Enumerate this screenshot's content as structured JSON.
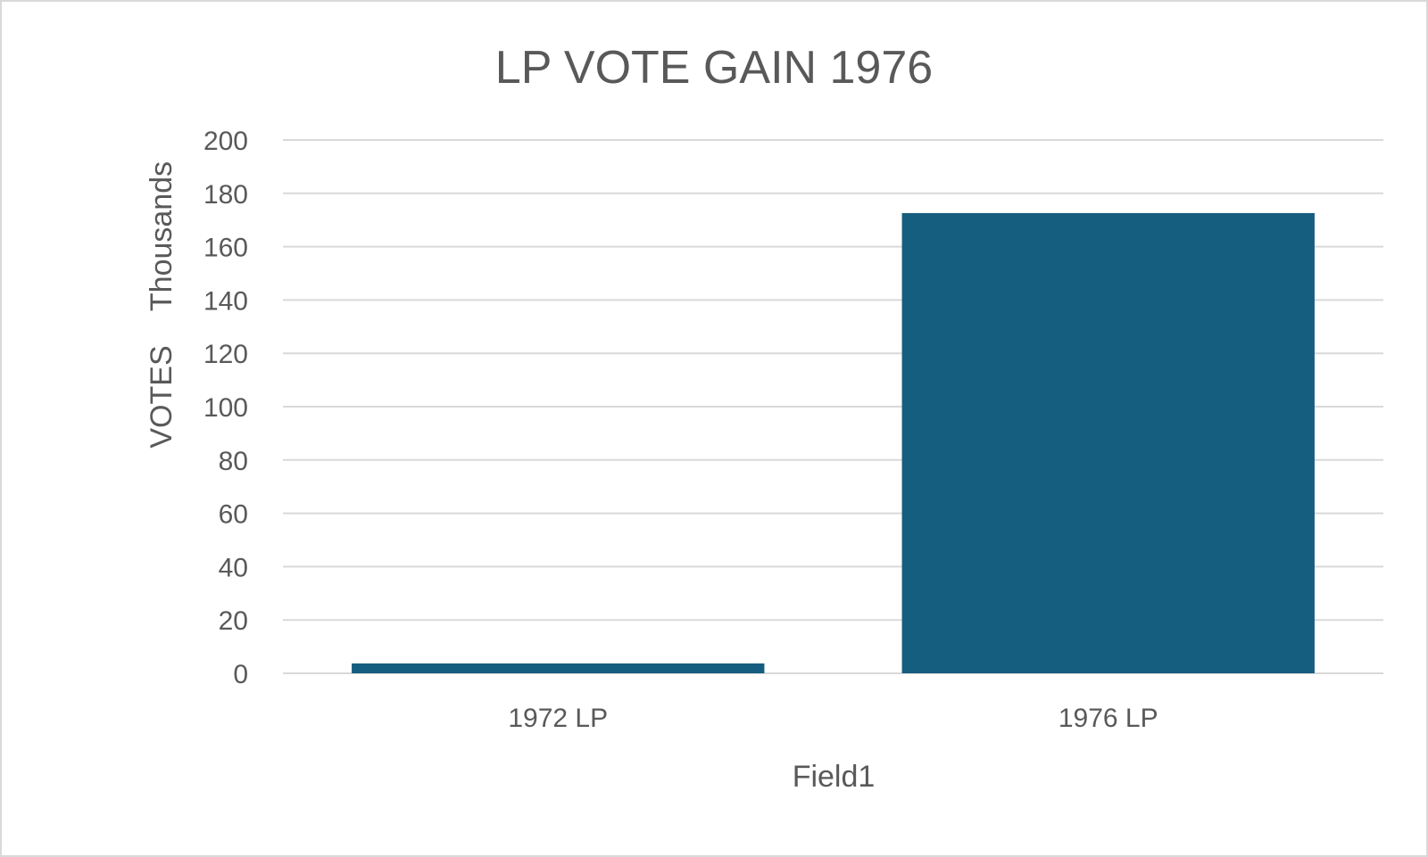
{
  "chart_data": {
    "type": "bar",
    "title": "LP VOTE GAIN 1976",
    "xlabel": "Field1",
    "ylabel": "VOTES",
    "y_display_units": "Thousands",
    "categories": [
      "1972 LP",
      "1976 LP"
    ],
    "series": [
      {
        "values": [
          3.7,
          172.6
        ]
      }
    ],
    "ylim": [
      0,
      200
    ],
    "yticks": [
      0,
      20,
      40,
      60,
      80,
      100,
      120,
      140,
      160,
      180,
      200
    ],
    "ytick_labels": [
      "0",
      "20",
      "40",
      "60",
      "80",
      "100",
      "120",
      "140",
      "160",
      "180",
      "200"
    ],
    "grid": true,
    "legend": "none",
    "colors": {
      "bar": "#165E80",
      "grid": "#d9d9d9",
      "text": "#595959"
    }
  }
}
